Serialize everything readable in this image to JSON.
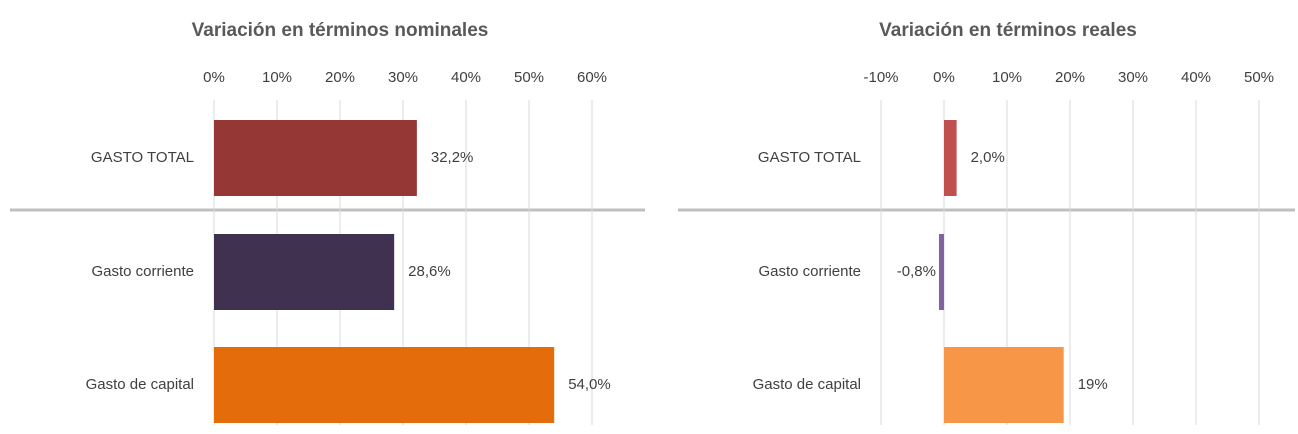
{
  "chart_data": [
    {
      "type": "bar",
      "orientation": "horizontal",
      "title": "Variación en términos nominales",
      "categories": [
        "GASTO TOTAL",
        "Gasto corriente",
        "Gasto de capital"
      ],
      "values": [
        32.2,
        28.6,
        54.0
      ],
      "value_labels": [
        "32,2%",
        "28,6%",
        "54,0%"
      ],
      "colors": [
        "#953735",
        "#403151",
        "#e46c0a"
      ],
      "xlim": [
        0,
        60
      ],
      "xticks": [
        {
          "value": 0,
          "label": "0%"
        },
        {
          "value": 10,
          "label": "10%"
        },
        {
          "value": 20,
          "label": "20%"
        },
        {
          "value": 30,
          "label": "30%"
        },
        {
          "value": 40,
          "label": "40%"
        },
        {
          "value": 50,
          "label": "50%"
        },
        {
          "value": 60,
          "label": "60%"
        }
      ],
      "grid": true
    },
    {
      "type": "bar",
      "orientation": "horizontal",
      "title": "Variación en términos reales",
      "categories": [
        "GASTO TOTAL",
        "Gasto corriente",
        "Gasto de capital"
      ],
      "values": [
        2.0,
        -0.8,
        19
      ],
      "value_labels": [
        "2,0%",
        "-0,8%",
        "19%"
      ],
      "colors": [
        "#c0504d",
        "#8064a2",
        "#f79646"
      ],
      "xlim": [
        -10,
        50
      ],
      "xticks": [
        {
          "value": -10,
          "label": "-10%"
        },
        {
          "value": 0,
          "label": "0%"
        },
        {
          "value": 10,
          "label": "10%"
        },
        {
          "value": 20,
          "label": "20%"
        },
        {
          "value": 30,
          "label": "30%"
        },
        {
          "value": 40,
          "label": "40%"
        },
        {
          "value": 50,
          "label": "50%"
        }
      ],
      "grid": true
    }
  ]
}
